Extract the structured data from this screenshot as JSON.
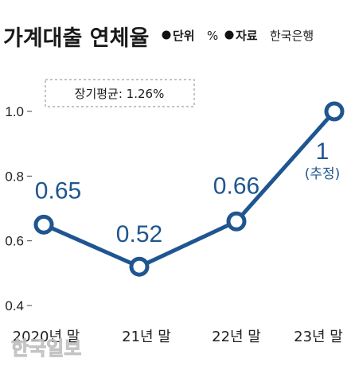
{
  "header": {
    "title": "가계대출 연체율",
    "unit_label": "단위",
    "unit_value": "%",
    "source_label": "자료",
    "source_value": "한국은행"
  },
  "annotation": "장기평균: 1.26%",
  "point_note": "(추정)",
  "watermark": "한국일보",
  "chart_data": {
    "type": "line",
    "title": "가계대출 연체율",
    "categories": [
      "2020년 말",
      "21년 말",
      "22년 말",
      "23년 말"
    ],
    "series": [
      {
        "values": [
          0.65,
          0.52,
          0.66,
          1.0
        ],
        "labels": [
          "0.65",
          "0.52",
          "0.66",
          "1"
        ]
      }
    ],
    "ylim": [
      0.4,
      1.0
    ],
    "yticks": [
      0.4,
      0.6,
      0.8,
      1.0
    ],
    "ytick_labels": [
      "0.4",
      "0.6",
      "0.8",
      "1.0"
    ],
    "xlabel": "",
    "ylabel": "",
    "grid": false,
    "legend": "none",
    "colors": {
      "line": "#1f5590",
      "marker_fill": "#ffffff",
      "label": "#1f5590"
    }
  }
}
